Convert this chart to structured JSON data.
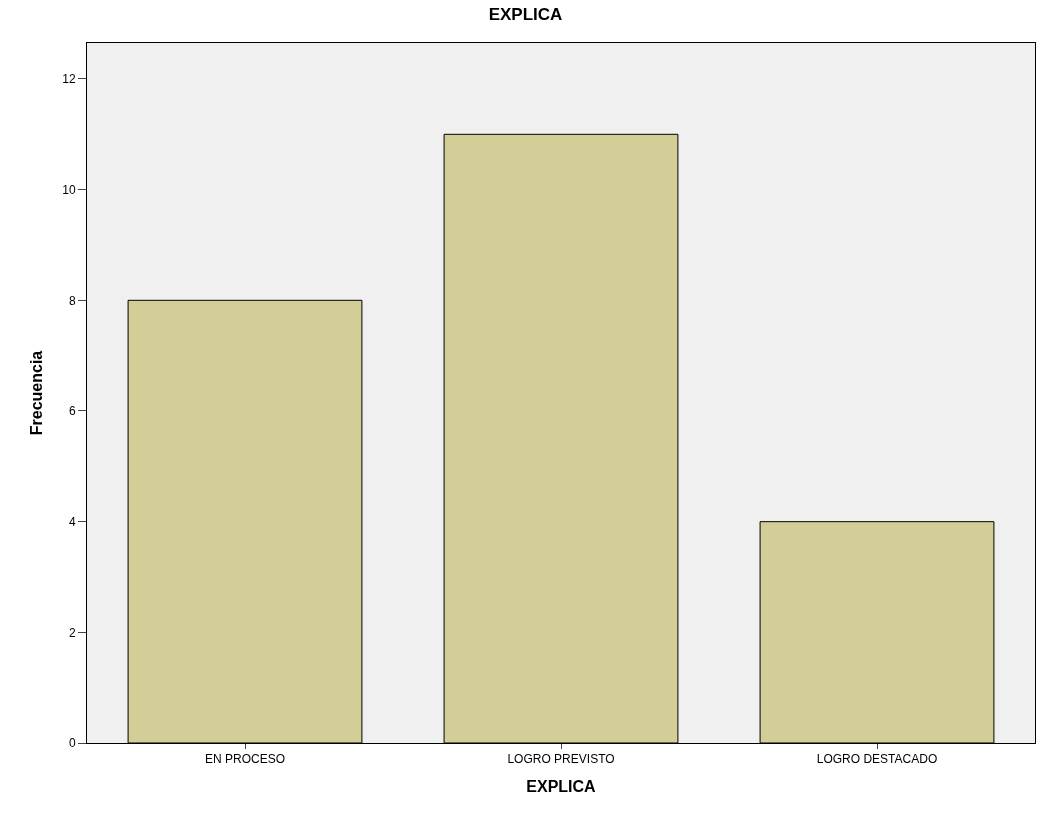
{
  "chart_data": {
    "type": "bar",
    "title": "EXPLICA",
    "xlabel": "EXPLICA",
    "ylabel": "Frecuencia",
    "categories": [
      "EN PROCESO",
      "LOGRO PREVISTO",
      "LOGRO DESTACADO"
    ],
    "values": [
      8,
      11,
      4
    ],
    "color": "#d3ce97",
    "ylim": [
      0,
      12.65
    ],
    "yticks": [
      0,
      2,
      4,
      6,
      8,
      10,
      12
    ],
    "grid": false
  }
}
